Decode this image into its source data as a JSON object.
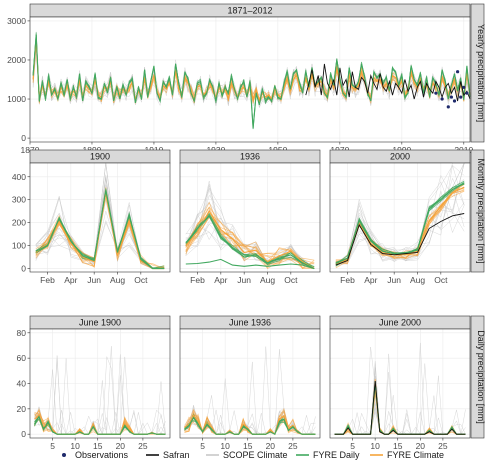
{
  "chart_data": [
    {
      "type": "line",
      "id": "yearly",
      "title": "1871–2012",
      "ylabel": "Yearly precipitation [mm]",
      "xlim": [
        1870,
        2012
      ],
      "ylim": [
        -100,
        3100
      ],
      "xticks": [
        1870,
        1890,
        1910,
        1930,
        1950,
        1970,
        1990,
        2010
      ],
      "xtick_labels": [
        "1870",
        "1890",
        "1910",
        "1930",
        "1950",
        "1970",
        "1990",
        "2010"
      ],
      "yticks": [
        0,
        1000,
        2000,
        3000
      ],
      "ytick_labels": [
        "0",
        "1000",
        "2000",
        "3000"
      ],
      "series": [
        {
          "name": "FYRE Climate",
          "x_start": 1871,
          "values": [
            1500,
            2500,
            1000,
            1350,
            1050,
            1500,
            1150,
            1200,
            1050,
            1300,
            1150,
            1400,
            1050,
            1200,
            1100,
            1500,
            1050,
            1350,
            1250,
            1200,
            1500,
            1100,
            1050,
            1300,
            1200,
            1450,
            1000,
            1250,
            1100,
            1250,
            1150,
            1300,
            1400,
            1000,
            1200,
            1100,
            1550,
            1100,
            1300,
            1600,
            1200,
            1000,
            1350,
            1250,
            1400,
            1150,
            1700,
            1300,
            1100,
            1550,
            1400,
            1200,
            1000,
            1300,
            1350,
            1100,
            1200,
            1400,
            1250,
            1000,
            1300,
            1150,
            1250,
            1000,
            1400,
            1200,
            1050,
            1250,
            1300,
            1100,
            1350,
            1000,
            1250,
            950,
            1150,
            1050,
            1100,
            1000,
            1250,
            1100,
            1050,
            1300,
            1550,
            1200,
            1500,
            1600,
            1300,
            1200,
            1550,
            1250,
            1650,
            1300,
            1400,
            1450,
            1200,
            1100,
            1500,
            1300,
            1800,
            1400,
            1200,
            1100,
            1600,
            1300,
            1250,
            1350,
            1700,
            1450,
            1200,
            1000,
            1550,
            1450,
            1500,
            1300,
            1400,
            1200,
            1600,
            1550,
            1300,
            1450,
            1100,
            1200,
            1650,
            1400,
            1300,
            1500,
            1200,
            1400,
            1100,
            1400,
            1300,
            1150,
            1550,
            1350,
            1050,
            1300,
            1500,
            1200,
            1400,
            1050,
            1650,
            1100
          ]
        },
        {
          "name": "FYRE Daily",
          "x_start": 1871,
          "values": [
            1600,
            2650,
            950,
            1450,
            1000,
            1600,
            1100,
            1250,
            1000,
            1400,
            1100,
            1500,
            1000,
            1300,
            1050,
            1650,
            950,
            1450,
            1300,
            1150,
            1650,
            1050,
            1000,
            1400,
            1150,
            1550,
            950,
            1300,
            1000,
            1350,
            1100,
            1400,
            1500,
            900,
            1300,
            1000,
            1750,
            1050,
            1450,
            1850,
            1150,
            950,
            1450,
            1300,
            1550,
            1100,
            1900,
            1400,
            1050,
            1700,
            1500,
            1150,
            950,
            1400,
            1450,
            1050,
            1150,
            1500,
            1300,
            950,
            1400,
            1100,
            1300,
            1150,
            1600,
            1250,
            1000,
            1300,
            1450,
            1050,
            1450,
            250,
            1150,
            850,
            1250,
            950,
            1050,
            950,
            1350,
            1050,
            1000,
            1400,
            1700,
            1250,
            1650,
            1750,
            1400,
            1150,
            1700,
            1300,
            1800,
            1350,
            1450,
            1550,
            1150,
            1050,
            1650,
            1350,
            2000,
            1500,
            1150,
            1050,
            1800,
            1350,
            1300,
            1450,
            1900,
            1550,
            1150,
            950,
            1700,
            1550,
            1650,
            1400,
            1550,
            1200,
            1800,
            1700,
            1350,
            1600,
            1050,
            1150,
            1850,
            1500,
            1350,
            1650,
            1150,
            1550,
            1050,
            1550,
            1400,
            1100,
            1750,
            1450,
            1000,
            1350,
            1650,
            1200,
            1500,
            1000,
            1850,
            1050
          ]
        },
        {
          "name": "Safran",
          "x_start": 1959,
          "values": [
            1100,
            1400,
            1750,
            1300,
            1600,
            1100,
            1900,
            1400,
            1250,
            1500,
            1100,
            1800,
            1350,
            1500,
            1050,
            1700,
            1300,
            1250,
            1550,
            1450,
            1150,
            1600,
            1400,
            1250,
            1650,
            1300,
            1200,
            1450,
            1100,
            1400,
            1300,
            1150,
            1500,
            1200,
            1350,
            1000,
            1300,
            1450,
            1050,
            1400,
            1250,
            1150,
            1450,
            1300,
            1050,
            1300,
            1400,
            1150,
            1300,
            950,
            1450,
            1100,
            1200,
            1000
          ]
        },
        {
          "name": "Observations",
          "x": [
            2001,
            2003,
            2005,
            2006,
            2007,
            2008,
            2009,
            2010,
            2011
          ],
          "values": [
            1150,
            1000,
            800,
            1050,
            950,
            1700,
            1050,
            1300,
            1150
          ]
        }
      ]
    },
    {
      "type": "line",
      "id": "month-1900",
      "title": "1900",
      "ylim": [
        -15,
        460
      ],
      "yticks": [
        0,
        100,
        200,
        300,
        400
      ],
      "ytick_labels": [
        "0",
        "100",
        "200",
        "300",
        "400"
      ],
      "xlim": [
        0.5,
        12.5
      ],
      "xticks": [
        2,
        4,
        6,
        8,
        10
      ],
      "xtick_labels": [
        "Feb",
        "Apr",
        "Jun",
        "Aug",
        "Oct"
      ],
      "x": [
        1,
        2,
        3,
        4,
        5,
        6,
        7,
        8,
        9,
        10,
        11,
        12
      ],
      "series": [
        {
          "name": "FYRE Climate",
          "values": [
            70,
            110,
            205,
            110,
            50,
            30,
            330,
            60,
            210,
            35,
            0,
            0
          ],
          "band": 25
        },
        {
          "name": "FYRE Daily",
          "values": [
            75,
            100,
            220,
            120,
            55,
            35,
            340,
            70,
            230,
            40,
            0,
            0
          ]
        }
      ]
    },
    {
      "type": "line",
      "id": "month-1936",
      "title": "1936",
      "ylim": [
        -15,
        460
      ],
      "xlim": [
        0.5,
        12.5
      ],
      "xticks": [
        2,
        4,
        6,
        8,
        10
      ],
      "xtick_labels": [
        "Feb",
        "Apr",
        "Jun",
        "Aug",
        "Oct"
      ],
      "x": [
        1,
        2,
        3,
        4,
        5,
        6,
        7,
        8,
        9,
        10,
        11,
        12
      ],
      "series": [
        {
          "name": "FYRE Climate",
          "values": [
            100,
            160,
            250,
            170,
            130,
            70,
            80,
            30,
            55,
            75,
            30,
            0
          ],
          "band": 40
        },
        {
          "name": "FYRE Daily",
          "values": [
            110,
            175,
            230,
            140,
            90,
            50,
            60,
            25,
            45,
            60,
            25,
            0
          ]
        },
        {
          "name": "FYRE Daily lower",
          "values": [
            20,
            22,
            28,
            40,
            15,
            10,
            15,
            10,
            15,
            20,
            15,
            0
          ]
        }
      ]
    },
    {
      "type": "line",
      "id": "month-2000",
      "title": "2000",
      "ylim": [
        -15,
        460
      ],
      "xlim": [
        0.5,
        12.5
      ],
      "xticks": [
        2,
        4,
        6,
        8,
        10
      ],
      "xtick_labels": [
        "Feb",
        "Apr",
        "Jun",
        "Aug",
        "Oct"
      ],
      "x": [
        1,
        2,
        3,
        4,
        5,
        6,
        7,
        8,
        9,
        10,
        11,
        12
      ],
      "series": [
        {
          "name": "FYRE Climate",
          "values": [
            20,
            40,
            195,
            110,
            70,
            60,
            60,
            75,
            210,
            270,
            330,
            355
          ],
          "band": 20
        },
        {
          "name": "FYRE Daily",
          "values": [
            22,
            45,
            210,
            120,
            75,
            65,
            70,
            80,
            260,
            300,
            345,
            370
          ]
        },
        {
          "name": "Safran",
          "values": [
            15,
            35,
            190,
            105,
            65,
            60,
            65,
            70,
            175,
            205,
            230,
            240
          ]
        }
      ]
    },
    {
      "type": "line",
      "id": "day-1900",
      "title": "June 1900",
      "ylabel": "Daily precipitation [mm]",
      "ylim": [
        -3,
        83
      ],
      "yticks": [
        0,
        20,
        40,
        60,
        80
      ],
      "ytick_labels": [
        "0",
        "20",
        "40",
        "60",
        "80"
      ],
      "xlim": [
        0,
        31
      ],
      "xticks": [
        5,
        10,
        15,
        20,
        25
      ],
      "xtick_labels": [
        "5",
        "10",
        "15",
        "20",
        "25"
      ],
      "series": [
        {
          "name": "FYRE Climate",
          "values": [
            12,
            15,
            6,
            8,
            3,
            0,
            0,
            0,
            0,
            0,
            3,
            0,
            0,
            7,
            0,
            0,
            0,
            0,
            0,
            0,
            8,
            4,
            0,
            0,
            0,
            0,
            1,
            0,
            0,
            0
          ]
        },
        {
          "name": "FYRE Daily",
          "values": [
            8,
            14,
            4,
            9,
            2,
            0,
            0,
            0,
            0,
            0,
            2,
            0,
            0,
            6,
            0,
            0,
            0,
            0,
            0,
            0,
            7,
            2,
            0,
            0,
            0,
            0,
            1,
            0,
            0,
            0
          ]
        }
      ]
    },
    {
      "type": "line",
      "id": "day-1936",
      "title": "June 1936",
      "ylim": [
        -3,
        83
      ],
      "xlim": [
        0,
        31
      ],
      "xticks": [
        5,
        10,
        15,
        20,
        25
      ],
      "xtick_labels": [
        "5",
        "10",
        "15",
        "20",
        "25"
      ],
      "series": [
        {
          "name": "FYRE Climate",
          "values": [
            5,
            8,
            15,
            10,
            2,
            9,
            5,
            0,
            0,
            0,
            2,
            0,
            0,
            8,
            5,
            0,
            0,
            0,
            0,
            3,
            0,
            12,
            14,
            4,
            7,
            2,
            0,
            0,
            0,
            0
          ]
        },
        {
          "name": "FYRE Daily",
          "values": [
            4,
            7,
            13,
            8,
            2,
            8,
            4,
            0,
            0,
            0,
            2,
            0,
            0,
            6,
            4,
            0,
            0,
            0,
            0,
            2,
            0,
            10,
            12,
            3,
            6,
            2,
            0,
            0,
            0,
            0
          ]
        }
      ]
    },
    {
      "type": "line",
      "id": "day-2000",
      "title": "June 2000",
      "ylim": [
        -3,
        83
      ],
      "xlim": [
        0,
        31
      ],
      "xticks": [
        5,
        10,
        15,
        20,
        25
      ],
      "xtick_labels": [
        "5",
        "10",
        "15",
        "20",
        "25"
      ],
      "series": [
        {
          "name": "FYRE Climate",
          "values": [
            0,
            0,
            0,
            5,
            0,
            0,
            0,
            0,
            0,
            38,
            3,
            0,
            0,
            4,
            0,
            0,
            0,
            0,
            0,
            0,
            0,
            3,
            0,
            0,
            0,
            0,
            4,
            0,
            0,
            0
          ]
        },
        {
          "name": "FYRE Daily",
          "values": [
            0,
            0,
            0,
            6,
            0,
            0,
            0,
            0,
            0,
            40,
            3,
            0,
            0,
            4,
            0,
            0,
            0,
            0,
            0,
            0,
            0,
            3,
            0,
            0,
            0,
            0,
            5,
            0,
            0,
            0
          ]
        },
        {
          "name": "Safran",
          "values": [
            0,
            0,
            0,
            5,
            0,
            0,
            0,
            0,
            0,
            42,
            2,
            0,
            0,
            3,
            0,
            0,
            0,
            0,
            0,
            0,
            0,
            2,
            0,
            0,
            0,
            0,
            4,
            0,
            0,
            0
          ]
        }
      ]
    }
  ],
  "side_labels": {
    "yearly": "Yearly precipitation [mm]",
    "monthly": "Monthly precipitation [mm]",
    "daily": "Daily precipitation [mm]"
  },
  "legend": {
    "position": "bottom",
    "items": [
      {
        "label": "Observations",
        "kind": "point",
        "color": "#1f2a6b"
      },
      {
        "label": "Safran",
        "kind": "line",
        "color": "#111111"
      },
      {
        "label": "SCOPE Climate",
        "kind": "line",
        "color": "#c8c8c8"
      },
      {
        "label": "FYRE Daily",
        "kind": "line",
        "color": "#41a85f"
      },
      {
        "label": "FYRE Climate",
        "kind": "line",
        "color": "#f5a33a"
      }
    ]
  },
  "colors": {
    "fyre_climate": "#f5a33a",
    "fyre_daily": "#41a85f",
    "safran": "#111111",
    "scope": "#c8c8c8",
    "observations": "#1f2a6b",
    "strip": "#d9d9d9",
    "grid": "#ebebeb"
  }
}
